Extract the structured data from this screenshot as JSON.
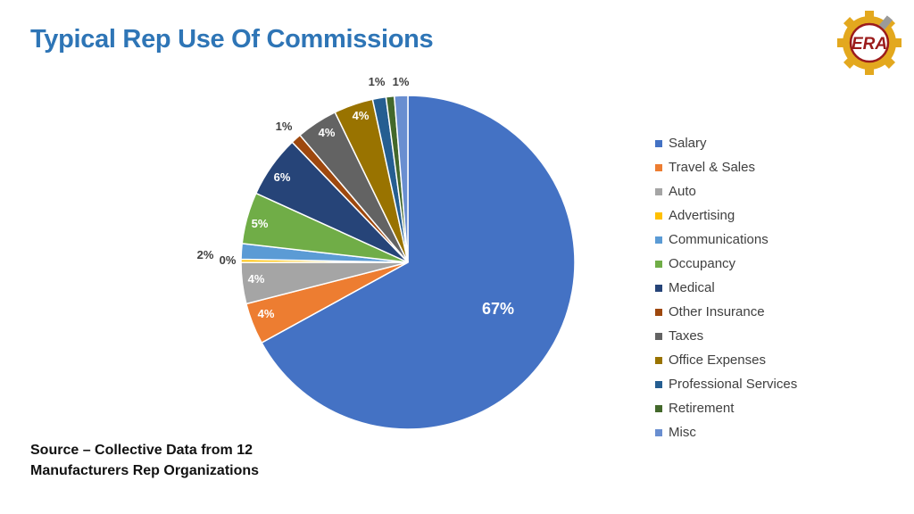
{
  "title": "Typical Rep Use Of Commissions",
  "logo": {
    "icon": "gear-wrench-logo-icon",
    "text": "ERA"
  },
  "source_text": "Source – Collective Data from 12 Manufacturers Rep Organizations",
  "chart_data": {
    "type": "pie",
    "title": "",
    "categories": [
      "Salary",
      "Travel & Sales",
      "Auto",
      "Advertising",
      "Communications",
      "Occupancy",
      "Medical",
      "Other Insurance",
      "Taxes",
      "Office Expenses",
      "Professional Services",
      "Retirement",
      "Misc"
    ],
    "values": [
      67,
      4,
      4,
      0.3,
      1.5,
      5,
      6,
      1,
      4,
      3.8,
      1.3,
      0.8,
      1.3
    ],
    "labels": [
      "67%",
      "4%",
      "4%",
      "0%",
      "2%",
      "5%",
      "6%",
      "1%",
      "4%",
      "4%",
      "1%",
      "1%",
      "1%"
    ],
    "colors": [
      "#4472C4",
      "#ED7D31",
      "#A5A5A5",
      "#FFC000",
      "#5B9BD5",
      "#70AD47",
      "#264478",
      "#9E480E",
      "#636363",
      "#997300",
      "#255E91",
      "#43682B",
      "#698ED0"
    ],
    "start": "12 o'clock, clockwise",
    "legend": "right"
  }
}
